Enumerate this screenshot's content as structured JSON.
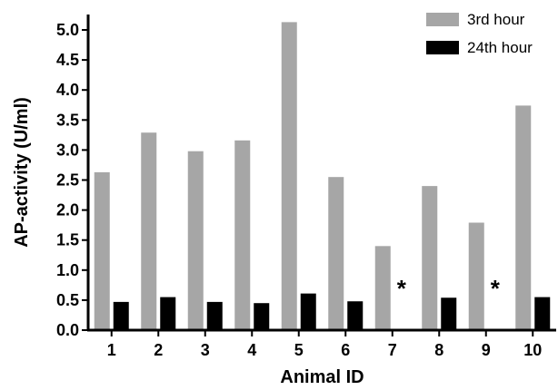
{
  "chart_data": {
    "type": "bar",
    "xlabel": "Animal ID",
    "ylabel": "AP-activity (U/ml)",
    "ylim": [
      0,
      5.0
    ],
    "yticks": [
      "0.0",
      "0.5",
      "1.0",
      "1.5",
      "2.0",
      "2.5",
      "3.0",
      "3.5",
      "4.0",
      "4.5",
      "5.0"
    ],
    "categories": [
      "1",
      "2",
      "3",
      "4",
      "5",
      "6",
      "7",
      "8",
      "9",
      "10"
    ],
    "series": [
      {
        "name": "3rd hour",
        "color": "#a6a6a6",
        "values": [
          2.63,
          3.29,
          2.98,
          3.16,
          5.13,
          2.55,
          1.4,
          2.4,
          1.79,
          3.74
        ]
      },
      {
        "name": "24th hour",
        "color": "#000000",
        "values": [
          0.47,
          0.55,
          0.47,
          0.45,
          0.61,
          0.48,
          null,
          0.54,
          null,
          0.55
        ]
      }
    ],
    "annotations": [
      {
        "category": "7",
        "text": "*"
      },
      {
        "category": "9",
        "text": "*"
      }
    ],
    "legend": "top-right",
    "grid": false
  }
}
